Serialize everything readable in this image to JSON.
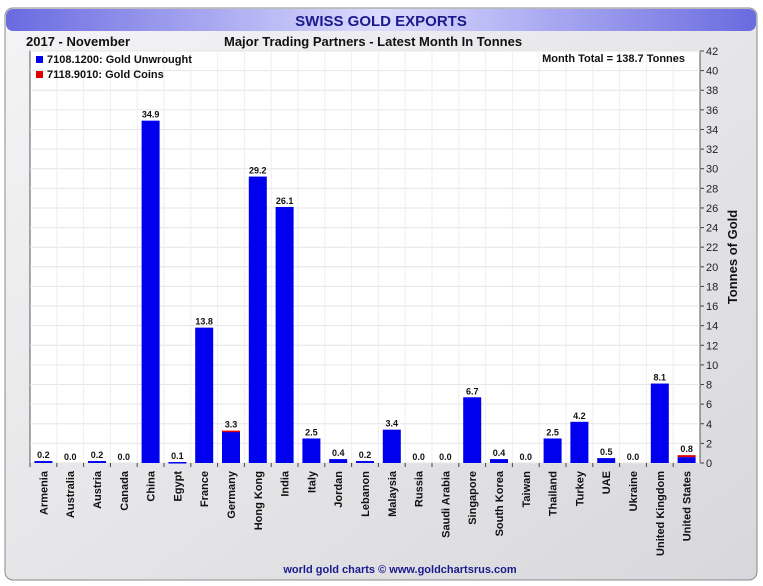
{
  "chart_data": {
    "type": "bar",
    "stacked": true,
    "title": "SWISS GOLD EXPORTS",
    "period": "2017 - November",
    "subtitle": "Major Trading Partners - Latest Month In Tonnes",
    "annotation": "Month Total = 138.7 Tonnes",
    "ylabel": "Tonnes of Gold",
    "xlabel": "",
    "ylim": [
      0,
      42
    ],
    "yticks": [
      0,
      2,
      4,
      6,
      8,
      10,
      12,
      14,
      16,
      18,
      20,
      22,
      24,
      26,
      28,
      30,
      32,
      34,
      36,
      38,
      40,
      42
    ],
    "grid": true,
    "legend_position": "top-left",
    "categories": [
      "Armenia",
      "Australia",
      "Austria",
      "Canada",
      "China",
      "Egypt",
      "France",
      "Germany",
      "Hong Kong",
      "India",
      "Italy",
      "Jordan",
      "Lebanon",
      "Malaysia",
      "Russia",
      "Saudi Arabia",
      "Singapore",
      "South Korea",
      "Taiwan",
      "Thailand",
      "Turkey",
      "UAE",
      "Ukraine",
      "United Kingdom",
      "United States"
    ],
    "totals": [
      "0.2",
      "0.0",
      "0.2",
      "0.0",
      "34.9",
      "0.1",
      "13.8",
      "3.3",
      "29.2",
      "26.1",
      "2.5",
      "0.4",
      "0.2",
      "3.4",
      "0.0",
      "0.0",
      "6.7",
      "0.4",
      "0.0",
      "2.5",
      "4.2",
      "0.5",
      "0.0",
      "8.1",
      "0.8"
    ],
    "series": [
      {
        "name": "7108.1200: Gold Unwrought",
        "color": "#0000ee",
        "values": [
          0.2,
          0.0,
          0.2,
          0.0,
          34.9,
          0.1,
          13.8,
          3.2,
          29.2,
          26.1,
          2.5,
          0.4,
          0.2,
          3.4,
          0.0,
          0.0,
          6.7,
          0.4,
          0.0,
          2.5,
          4.2,
          0.5,
          0.0,
          8.1,
          0.6
        ]
      },
      {
        "name": "7118.9010: Gold Coins",
        "color": "#e00000",
        "values": [
          0,
          0,
          0,
          0,
          0,
          0,
          0,
          0.1,
          0,
          0,
          0,
          0,
          0,
          0,
          0,
          0,
          0,
          0,
          0,
          0,
          0,
          0,
          0,
          0,
          0.2
        ]
      }
    ],
    "footer": "world gold charts © www.goldchartsrus.com"
  }
}
